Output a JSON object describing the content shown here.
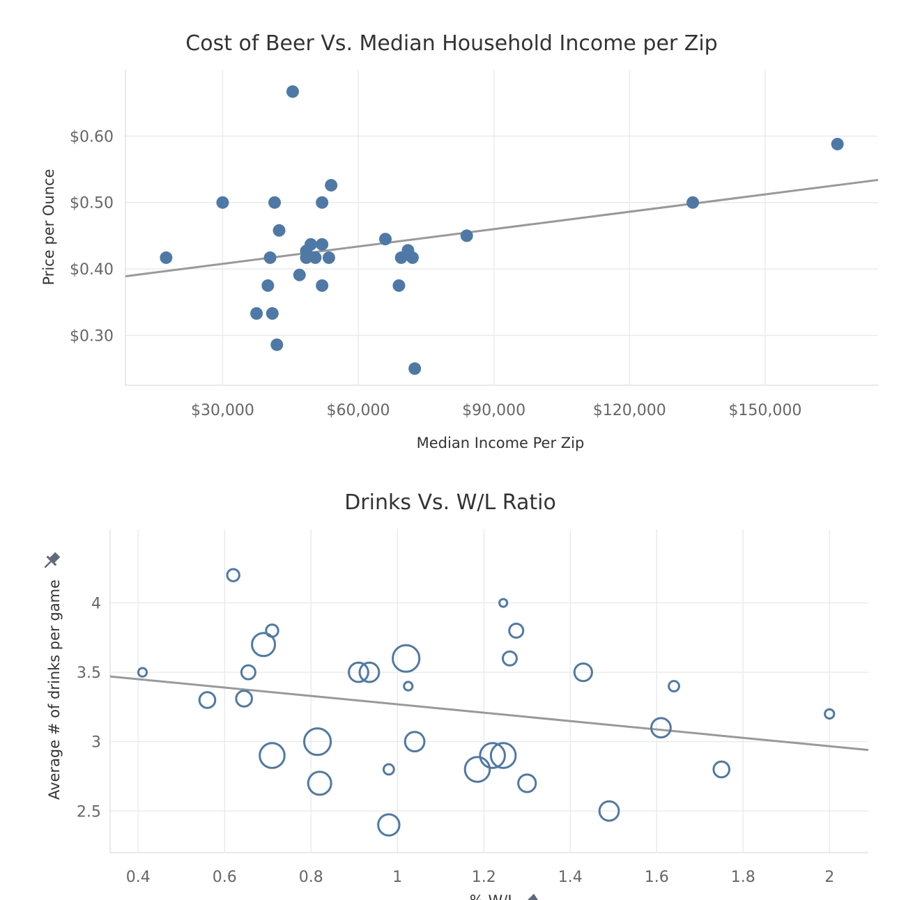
{
  "colors": {
    "mark": "#4e79a7",
    "trend": "#999999",
    "pin": "#5f6b7a"
  },
  "chart_data": [
    {
      "type": "scatter",
      "title": "Cost of Beer Vs. Median Household Income per Zip",
      "xlabel": "Median Income Per Zip",
      "ylabel": "Price per Ounce",
      "xlim": [
        8500,
        175000
      ],
      "ylim": [
        0.225,
        0.7
      ],
      "x_ticks": [
        30000,
        60000,
        90000,
        120000,
        150000
      ],
      "x_tick_labels": [
        "$30,000",
        "$60,000",
        "$90,000",
        "$120,000",
        "$150,000"
      ],
      "y_ticks": [
        0.3,
        0.4,
        0.5,
        0.6
      ],
      "y_tick_labels": [
        "$0.30",
        "$0.40",
        "$0.50",
        "$0.60"
      ],
      "grid": true,
      "marker": "filled-circle",
      "trend_line": {
        "x": [
          8500,
          175000
        ],
        "y": [
          0.389,
          0.534
        ]
      },
      "points": [
        {
          "x": 17500,
          "y": 0.417
        },
        {
          "x": 30000,
          "y": 0.5
        },
        {
          "x": 37500,
          "y": 0.333
        },
        {
          "x": 40000,
          "y": 0.375
        },
        {
          "x": 40500,
          "y": 0.417
        },
        {
          "x": 41000,
          "y": 0.333
        },
        {
          "x": 41500,
          "y": 0.5
        },
        {
          "x": 42000,
          "y": 0.286
        },
        {
          "x": 42500,
          "y": 0.458
        },
        {
          "x": 45500,
          "y": 0.667
        },
        {
          "x": 47000,
          "y": 0.391
        },
        {
          "x": 48500,
          "y": 0.417
        },
        {
          "x": 48500,
          "y": 0.427
        },
        {
          "x": 49500,
          "y": 0.437
        },
        {
          "x": 50500,
          "y": 0.417
        },
        {
          "x": 52000,
          "y": 0.5
        },
        {
          "x": 52000,
          "y": 0.437
        },
        {
          "x": 52000,
          "y": 0.375
        },
        {
          "x": 53500,
          "y": 0.417
        },
        {
          "x": 54000,
          "y": 0.526
        },
        {
          "x": 66000,
          "y": 0.445
        },
        {
          "x": 69000,
          "y": 0.375
        },
        {
          "x": 69500,
          "y": 0.417
        },
        {
          "x": 71000,
          "y": 0.428
        },
        {
          "x": 72000,
          "y": 0.417
        },
        {
          "x": 72500,
          "y": 0.25
        },
        {
          "x": 84000,
          "y": 0.45
        },
        {
          "x": 134000,
          "y": 0.5
        },
        {
          "x": 166000,
          "y": 0.588
        }
      ]
    },
    {
      "type": "scatter",
      "title": "Drinks Vs. W/L Ratio",
      "xlabel": "% W/L",
      "ylabel": "Average # of drinks per game",
      "xlim": [
        0.335,
        2.09
      ],
      "ylim": [
        2.2,
        4.53
      ],
      "x_ticks": [
        0.4,
        0.6,
        0.8,
        1.0,
        1.2,
        1.4,
        1.6,
        1.8,
        2.0
      ],
      "x_tick_labels": [
        "0.4",
        "0.6",
        "0.8",
        "1",
        "1.2",
        "1.4",
        "1.6",
        "1.8",
        "2"
      ],
      "y_ticks": [
        2.5,
        3.0,
        3.5,
        4.0
      ],
      "y_tick_labels": [
        "2.5",
        "3",
        "3.5",
        "4"
      ],
      "grid": true,
      "marker": "hollow-circle",
      "trend_line": {
        "x": [
          0.335,
          2.09
        ],
        "y": [
          3.47,
          2.94
        ]
      },
      "points": [
        {
          "x": 0.41,
          "y": 3.5,
          "size": 1
        },
        {
          "x": 0.56,
          "y": 3.3,
          "size": 3
        },
        {
          "x": 0.62,
          "y": 4.2,
          "size": 2
        },
        {
          "x": 0.645,
          "y": 3.31,
          "size": 3
        },
        {
          "x": 0.655,
          "y": 3.5,
          "size": 2.5
        },
        {
          "x": 0.69,
          "y": 3.7,
          "size": 5
        },
        {
          "x": 0.71,
          "y": 2.9,
          "size": 5.5
        },
        {
          "x": 0.71,
          "y": 3.8,
          "size": 2
        },
        {
          "x": 0.815,
          "y": 3.0,
          "size": 6
        },
        {
          "x": 0.82,
          "y": 2.7,
          "size": 5
        },
        {
          "x": 0.91,
          "y": 3.5,
          "size": 4
        },
        {
          "x": 0.935,
          "y": 3.5,
          "size": 4
        },
        {
          "x": 0.98,
          "y": 2.4,
          "size": 4.5
        },
        {
          "x": 0.98,
          "y": 2.8,
          "size": 1.5
        },
        {
          "x": 1.02,
          "y": 3.6,
          "size": 6
        },
        {
          "x": 1.025,
          "y": 3.4,
          "size": 1
        },
        {
          "x": 1.04,
          "y": 3.0,
          "size": 4
        },
        {
          "x": 1.185,
          "y": 2.8,
          "size": 5.5
        },
        {
          "x": 1.22,
          "y": 2.9,
          "size": 5.5
        },
        {
          "x": 1.245,
          "y": 2.9,
          "size": 5.5
        },
        {
          "x": 1.245,
          "y": 4.0,
          "size": 0.8
        },
        {
          "x": 1.26,
          "y": 3.6,
          "size": 2.5
        },
        {
          "x": 1.275,
          "y": 3.8,
          "size": 2.5
        },
        {
          "x": 1.3,
          "y": 2.7,
          "size": 3.5
        },
        {
          "x": 1.43,
          "y": 3.5,
          "size": 3.5
        },
        {
          "x": 1.49,
          "y": 2.5,
          "size": 4
        },
        {
          "x": 1.61,
          "y": 3.1,
          "size": 4
        },
        {
          "x": 1.64,
          "y": 3.4,
          "size": 1.5
        },
        {
          "x": 1.75,
          "y": 2.8,
          "size": 3
        },
        {
          "x": 2.0,
          "y": 3.2,
          "size": 1.2
        }
      ]
    }
  ]
}
